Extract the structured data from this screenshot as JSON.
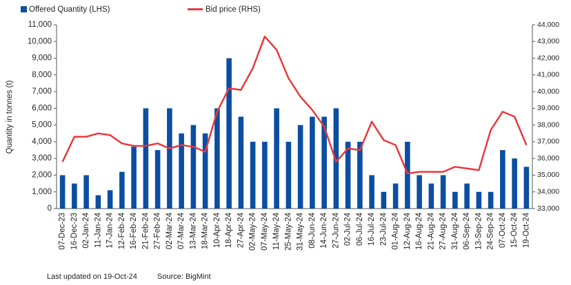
{
  "chart_data": {
    "type": "bar_line",
    "y_label": "Quantity in tonnes (t)",
    "footer": {
      "updated": "Last updated on 19-Oct-24",
      "source": "Source: BigMint"
    },
    "categories": [
      "07-Dec-23",
      "16-Dec-23",
      "02-Jan-24",
      "11-Jan-24",
      "17-Jan-24",
      "12-Feb-24",
      "16-Feb-24",
      "21-Feb-24",
      "27-Feb-24",
      "02-Mar-24",
      "07-Mar-24",
      "13-Mar-24",
      "18-Mar-24",
      "10-Apr-24",
      "18-Apr-24",
      "27-Apr-24",
      "02-May-24",
      "07-May-24",
      "11-May-24",
      "25-May-24",
      "31-May-24",
      "08-Jun-24",
      "14-Jun-24",
      "27-Jun-24",
      "02-Jul-24",
      "06-Jul-24",
      "16-Jul-24",
      "23-Jul-24",
      "01-Aug-24",
      "12-Aug-24",
      "16-Aug-24",
      "21-Aug-24",
      "27-Aug-24",
      "31-Aug-24",
      "06-Sep-24",
      "13-Sep-24",
      "24-Sep-24",
      "07-Oct-24",
      "15-Oct-24",
      "19-Oct-24"
    ],
    "series": [
      {
        "name": "Offered Quantity (LHS)",
        "type": "bar",
        "color": "#0b4ea2",
        "values": [
          2000,
          1500,
          2000,
          800,
          1100,
          2200,
          3700,
          6000,
          3500,
          6000,
          4500,
          5000,
          4500,
          6000,
          9000,
          5500,
          4000,
          4000,
          6000,
          4000,
          5000,
          5500,
          5500,
          6000,
          4000,
          4000,
          2000,
          1000,
          1500,
          4000,
          2000,
          1500,
          2000,
          1000,
          1500,
          1000,
          1000,
          3500,
          3000,
          2500
        ]
      },
      {
        "name": "Bid price (RHS)",
        "type": "line",
        "axis": "y2",
        "color": "#e8383d",
        "values": [
          35800,
          37300,
          37300,
          37500,
          37400,
          36900,
          36750,
          36750,
          36900,
          36600,
          36800,
          36700,
          36400,
          38800,
          40200,
          40100,
          41400,
          43300,
          42500,
          40800,
          39700,
          38900,
          37900,
          35800,
          36600,
          36500,
          38200,
          37100,
          36800,
          35100,
          35200,
          35200,
          35200,
          35500,
          35400,
          35300,
          37700,
          38800,
          38500,
          36800
        ]
      }
    ],
    "ylim": [
      0,
      11000
    ],
    "yticks": [
      0,
      {
        "value": 1000,
        "label": "1,000"
      },
      {
        "value": 2000,
        "label": "2,000"
      },
      {
        "value": 3000,
        "label": "3,000"
      },
      {
        "value": 4000,
        "label": "4,000"
      },
      {
        "value": 5000,
        "label": "5,000"
      },
      {
        "value": 6000,
        "label": "6,000"
      },
      {
        "value": 7000,
        "label": "7,000"
      },
      {
        "value": 8000,
        "label": "8,000"
      },
      {
        "value": 9000,
        "label": "9,000"
      },
      {
        "value": 10000,
        "label": "10,000"
      },
      {
        "value": 11000,
        "label": "11,000"
      }
    ],
    "y2lim": [
      33000,
      44000
    ],
    "y2ticks": [
      {
        "value": 33000,
        "label": "33,000"
      },
      {
        "value": 34000,
        "label": "34,000"
      },
      {
        "value": 35000,
        "label": "35,000"
      },
      {
        "value": 36000,
        "label": "36,000"
      },
      {
        "value": 37000,
        "label": "37,000"
      },
      {
        "value": 38000,
        "label": "38,000"
      },
      {
        "value": 39000,
        "label": "39,000"
      },
      {
        "value": 40000,
        "label": "40,000"
      },
      {
        "value": 41000,
        "label": "41,000"
      },
      {
        "value": 42000,
        "label": "42,000"
      },
      {
        "value": 43000,
        "label": "43,000"
      },
      {
        "value": 44000,
        "label": "44,000"
      }
    ]
  }
}
